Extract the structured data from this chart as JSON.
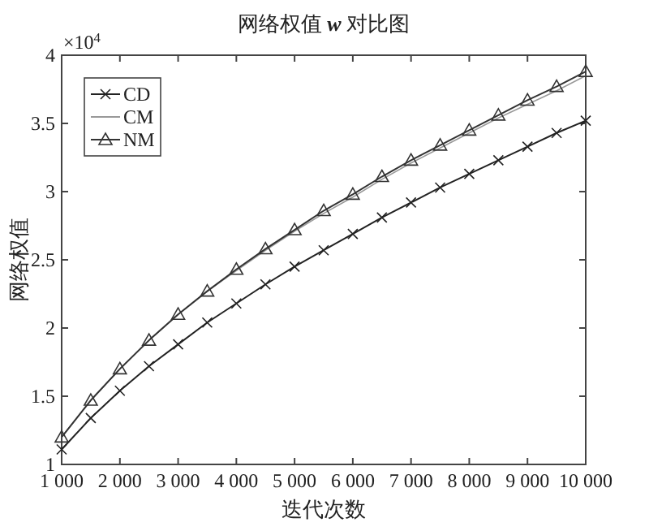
{
  "chart_data": {
    "type": "line",
    "title": "网络权值 *w* 对比图",
    "xlabel": "迭代次数",
    "ylabel": "网络权值",
    "annotations": [
      "×10$^{4}$"
    ],
    "x": [
      1000,
      1500,
      2000,
      2500,
      3000,
      3500,
      4000,
      4500,
      5000,
      5500,
      6000,
      6500,
      7000,
      7500,
      8000,
      8500,
      9000,
      9500,
      10000
    ],
    "series": [
      {
        "name": "CD",
        "color": "#222222",
        "marker": "cross",
        "values": [
          1.11,
          1.34,
          1.54,
          1.72,
          1.88,
          2.04,
          2.18,
          2.32,
          2.45,
          2.57,
          2.69,
          2.81,
          2.92,
          3.03,
          3.13,
          3.23,
          3.33,
          3.43,
          3.52
        ]
      },
      {
        "name": "CM",
        "color": "#999999",
        "marker": "none",
        "values": [
          1.2,
          1.47,
          1.7,
          1.91,
          2.1,
          2.27,
          2.42,
          2.57,
          2.71,
          2.84,
          2.96,
          3.09,
          3.21,
          3.32,
          3.43,
          3.54,
          3.64,
          3.74,
          3.85
        ]
      },
      {
        "name": "NM",
        "color": "#333333",
        "marker": "triangle",
        "values": [
          1.2,
          1.47,
          1.7,
          1.91,
          2.1,
          2.27,
          2.43,
          2.58,
          2.72,
          2.86,
          2.98,
          3.11,
          3.23,
          3.34,
          3.45,
          3.56,
          3.67,
          3.77,
          3.88
        ]
      }
    ],
    "xlim": [
      1000,
      10000
    ],
    "ylim": [
      1,
      4
    ],
    "xticks": [
      {
        "value": 1000,
        "label": "1 000"
      },
      {
        "value": 2000,
        "label": "2 000"
      },
      {
        "value": 3000,
        "label": "3 000"
      },
      {
        "value": 4000,
        "label": "4 000"
      },
      {
        "value": 5000,
        "label": "5 000"
      },
      {
        "value": 6000,
        "label": "6 000"
      },
      {
        "value": 7000,
        "label": "7 000"
      },
      {
        "value": 8000,
        "label": "8 000"
      },
      {
        "value": 9000,
        "label": "9 000"
      },
      {
        "value": 10000,
        "label": "10 000"
      }
    ],
    "yticks": [
      1,
      1.5,
      2,
      2.5,
      3,
      3.5,
      4
    ],
    "legend": "top left",
    "grid": false
  }
}
